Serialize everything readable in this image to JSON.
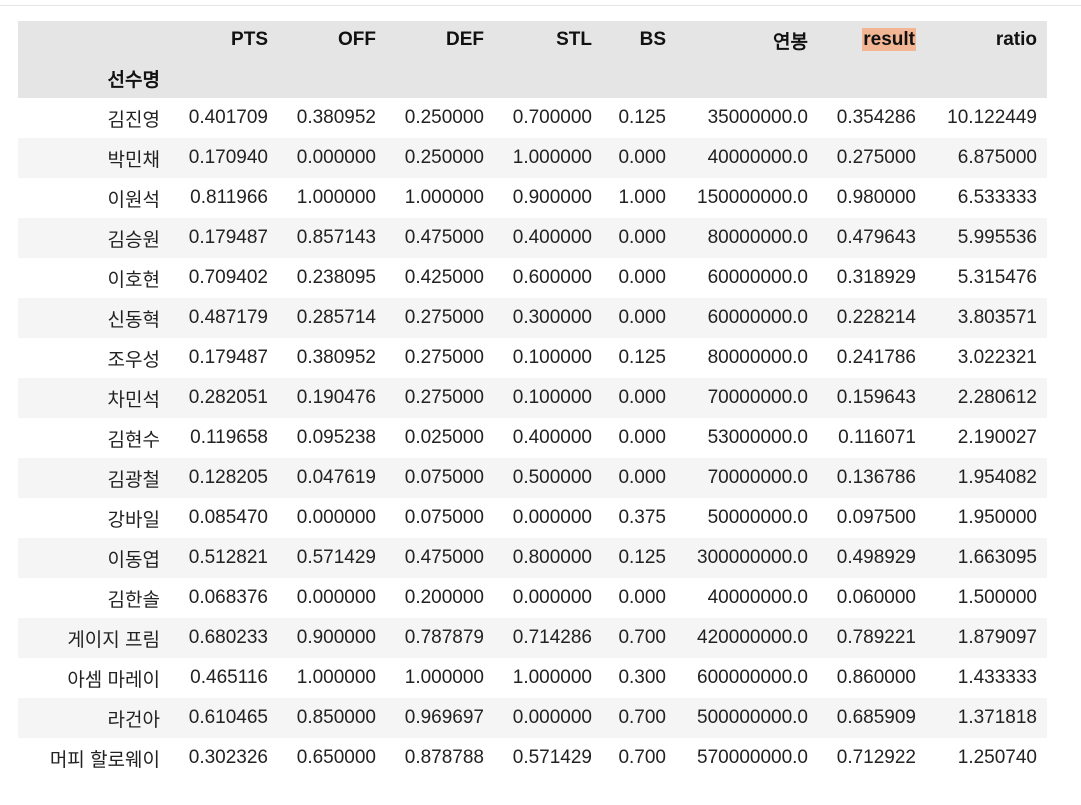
{
  "table": {
    "columns": [
      "",
      "PTS",
      "OFF",
      "DEF",
      "STL",
      "BS",
      "연봉",
      "result",
      "ratio"
    ],
    "index_name": "선수명",
    "highlight_color": "#f2b694",
    "rows": [
      {
        "name": "김진영",
        "values": [
          "0.401709",
          "0.380952",
          "0.250000",
          "0.700000",
          "0.125",
          "35000000.0",
          "0.354286",
          "10.122449"
        ]
      },
      {
        "name": "박민채",
        "values": [
          "0.170940",
          "0.000000",
          "0.250000",
          "1.000000",
          "0.000",
          "40000000.0",
          "0.275000",
          "6.875000"
        ]
      },
      {
        "name": "이원석",
        "values": [
          "0.811966",
          "1.000000",
          "1.000000",
          "0.900000",
          "1.000",
          "150000000.0",
          "0.980000",
          "6.533333"
        ]
      },
      {
        "name": "김승원",
        "values": [
          "0.179487",
          "0.857143",
          "0.475000",
          "0.400000",
          "0.000",
          "80000000.0",
          "0.479643",
          "5.995536"
        ]
      },
      {
        "name": "이호현",
        "values": [
          "0.709402",
          "0.238095",
          "0.425000",
          "0.600000",
          "0.000",
          "60000000.0",
          "0.318929",
          "5.315476"
        ]
      },
      {
        "name": "신동혁",
        "values": [
          "0.487179",
          "0.285714",
          "0.275000",
          "0.300000",
          "0.000",
          "60000000.0",
          "0.228214",
          "3.803571"
        ]
      },
      {
        "name": "조우성",
        "values": [
          "0.179487",
          "0.380952",
          "0.275000",
          "0.100000",
          "0.125",
          "80000000.0",
          "0.241786",
          "3.022321"
        ]
      },
      {
        "name": "차민석",
        "values": [
          "0.282051",
          "0.190476",
          "0.275000",
          "0.100000",
          "0.000",
          "70000000.0",
          "0.159643",
          "2.280612"
        ]
      },
      {
        "name": "김현수",
        "values": [
          "0.119658",
          "0.095238",
          "0.025000",
          "0.400000",
          "0.000",
          "53000000.0",
          "0.116071",
          "2.190027"
        ]
      },
      {
        "name": "김광철",
        "values": [
          "0.128205",
          "0.047619",
          "0.075000",
          "0.500000",
          "0.000",
          "70000000.0",
          "0.136786",
          "1.954082"
        ]
      },
      {
        "name": "강바일",
        "values": [
          "0.085470",
          "0.000000",
          "0.075000",
          "0.000000",
          "0.375",
          "50000000.0",
          "0.097500",
          "1.950000"
        ]
      },
      {
        "name": "이동엽",
        "values": [
          "0.512821",
          "0.571429",
          "0.475000",
          "0.800000",
          "0.125",
          "300000000.0",
          "0.498929",
          "1.663095"
        ]
      },
      {
        "name": "김한솔",
        "values": [
          "0.068376",
          "0.000000",
          "0.200000",
          "0.000000",
          "0.000",
          "40000000.0",
          "0.060000",
          "1.500000"
        ]
      },
      {
        "name": "게이지 프림",
        "values": [
          "0.680233",
          "0.900000",
          "0.787879",
          "0.714286",
          "0.700",
          "420000000.0",
          "0.789221",
          "1.879097"
        ]
      },
      {
        "name": "아셈 마레이",
        "values": [
          "0.465116",
          "1.000000",
          "1.000000",
          "1.000000",
          "0.300",
          "600000000.0",
          "0.860000",
          "1.433333"
        ]
      },
      {
        "name": "라건아",
        "values": [
          "0.610465",
          "0.850000",
          "0.969697",
          "0.000000",
          "0.700",
          "500000000.0",
          "0.685909",
          "1.371818"
        ]
      },
      {
        "name": "머피 할로웨이",
        "values": [
          "0.302326",
          "0.650000",
          "0.878788",
          "0.571429",
          "0.700",
          "570000000.0",
          "0.712922",
          "1.250740"
        ]
      }
    ]
  }
}
